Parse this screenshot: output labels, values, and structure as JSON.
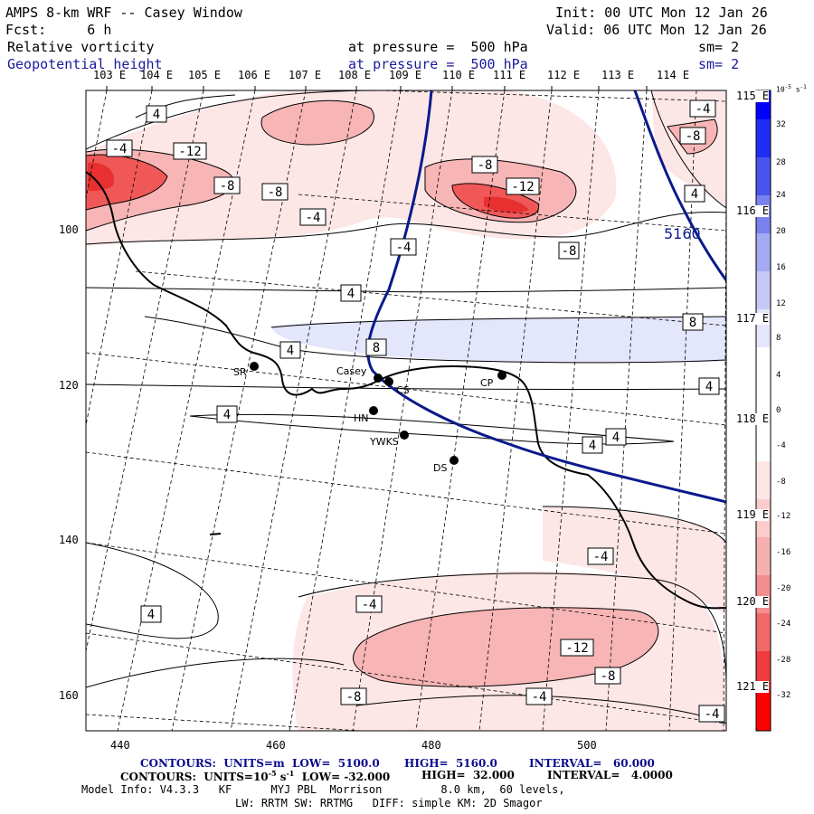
{
  "header": {
    "title": "AMPS 8-km WRF -- Casey Window",
    "forecast": "Fcst:     6 h",
    "init": "Init: 00 UTC Mon 12 Jan 26",
    "valid": "Valid: 06 UTC Mon 12 Jan 26",
    "field1": "Relative vorticity",
    "field2": "Geopotential height",
    "level1": "at pressure =  500 hPa",
    "level2": "at pressure =  500 hPa",
    "sm1": "sm= 2",
    "sm2": "sm= 2"
  },
  "top_lon_labels": [
    "103 E",
    "104 E",
    "105 E",
    "106 E",
    "107 E",
    "108 E",
    "109 E",
    "110 E",
    "111 E",
    "112 E",
    "113 E",
    "114 E"
  ],
  "right_lat_labels": [
    "115 E",
    "116 E",
    "117 E",
    "118 E",
    "119 E",
    "120 E",
    "121 E"
  ],
  "axes": {
    "x_ticks": [
      "440",
      "460",
      "480",
      "500"
    ],
    "y_ticks": [
      "100",
      "120",
      "140",
      "160"
    ]
  },
  "colorbar": {
    "units": "10",
    "units_exp": "-5",
    "units_suffix": " s",
    "units_suffix_exp": "-1",
    "ticks": [
      "32",
      "28",
      "24",
      "20",
      "16",
      "12",
      "8",
      "4",
      "0",
      "-4",
      "-8",
      "-12",
      "-16",
      "-20",
      "-24",
      "-28",
      "-32"
    ],
    "colors": {
      "pos_strong": "#0000ff",
      "pos_weak": "#e4e6fb",
      "neg_weak": "#fde6e6",
      "neg_mid": "#f7b0b0",
      "neg_strong": "#f04a4a",
      "neg_max": "#ff0000"
    }
  },
  "stations": [
    "SR",
    "Casey",
    "CS",
    "HN",
    "YWKS",
    "DS",
    "CP"
  ],
  "vorticity_labels": [
    "4",
    "-4",
    "-12",
    "-8",
    "-8",
    "-4",
    "-8",
    "-12",
    "-8",
    "-4",
    "4",
    "-4",
    "-8",
    "4",
    "4",
    "-4",
    "4",
    "8",
    "8",
    "4",
    "4",
    "4",
    "4",
    "-4",
    "-4",
    "4",
    "-12",
    "-8",
    "-8",
    "-4",
    "-4"
  ],
  "height_label": "5160",
  "footer": {
    "contours1_a": "CONTOURS:  UNITS=m  LOW=  5100.0",
    "contours1_b": "HIGH=  5160.0",
    "contours1_c": "INTERVAL=   60.000",
    "contours2_a": "CONTOURS:  UNITS=10",
    "contours2_exp": "-5",
    "contours2_s": " s",
    "contours2_sexp": "-1",
    "contours2_b": "  LOW= -32.000",
    "contours2_c": "HIGH=  32.000",
    "contours2_d": "INTERVAL=   4.0000",
    "model1": "Model Info: V4.3.3   KF      MYJ PBL  Morrison         8.0 km,  60 levels,",
    "model2": "LW: RRTM SW: RRTMG   DIFF: simple KM: 2D Smagor"
  }
}
